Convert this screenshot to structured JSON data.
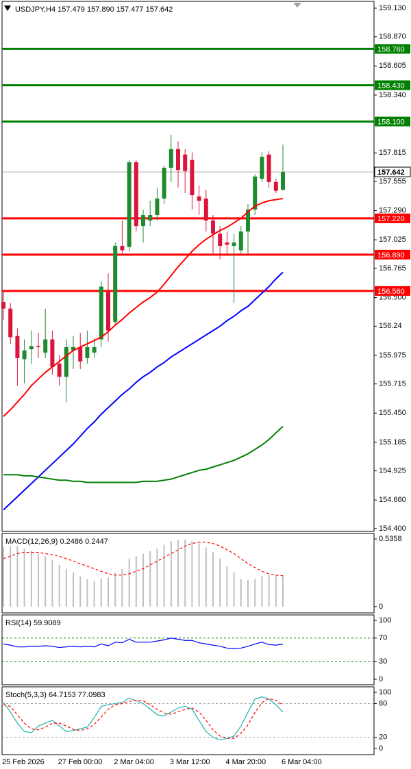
{
  "chart_data": [
    {
      "type": "candlestick",
      "title": "USDJPY,H4 157.479 157.890 157.477 157.642",
      "categories": [
        "25 Feb 2026",
        null,
        null,
        null,
        null,
        null,
        null,
        null,
        "27 Feb 00:00",
        null,
        null,
        null,
        null,
        null,
        null,
        null,
        "2 Mar 04:00",
        null,
        null,
        null,
        null,
        null,
        null,
        null,
        "3 Mar 12:00",
        null,
        null,
        null,
        null,
        null,
        null,
        null,
        "4 Mar 20:00",
        null,
        null,
        null,
        null,
        null,
        null,
        null,
        "6 Mar 04:00"
      ],
      "open": [
        156.46,
        156.4,
        156.15,
        155.94,
        156.03,
        156.06,
        156.0,
        156.12,
        155.9,
        155.78,
        156.02,
        156.05,
        155.95,
        156.0,
        156.12,
        156.55,
        156.28,
        156.97,
        156.96,
        157.73,
        157.15,
        157.2,
        157.25,
        157.4,
        157.68,
        157.85,
        157.8,
        157.75,
        157.42,
        157.4,
        157.2,
        157.08,
        157.0,
        156.97,
        156.93,
        157.1,
        157.3,
        157.58,
        157.8,
        157.55,
        157.479
      ],
      "high": [
        156.55,
        156.45,
        156.22,
        156.12,
        156.2,
        156.18,
        156.4,
        156.2,
        155.98,
        156.12,
        156.15,
        156.18,
        156.2,
        156.13,
        156.65,
        156.72,
        157.0,
        157.2,
        157.75,
        157.75,
        157.3,
        157.38,
        157.5,
        157.7,
        157.98,
        157.92,
        157.85,
        157.82,
        157.52,
        157.48,
        157.25,
        157.15,
        157.1,
        157.08,
        157.15,
        157.35,
        157.62,
        157.82,
        157.83,
        157.58,
        157.89
      ],
      "low": [
        156.3,
        156.08,
        155.7,
        155.72,
        155.9,
        155.95,
        155.95,
        155.8,
        155.7,
        155.55,
        155.85,
        155.85,
        155.9,
        155.95,
        156.05,
        156.1,
        156.25,
        156.9,
        156.92,
        157.1,
        157.0,
        157.15,
        157.2,
        157.35,
        157.55,
        157.5,
        157.45,
        157.3,
        157.25,
        157.1,
        156.9,
        156.85,
        156.9,
        156.45,
        156.9,
        156.9,
        157.25,
        157.55,
        157.5,
        157.45,
        157.477
      ],
      "close": [
        156.4,
        156.14,
        155.95,
        156.02,
        156.06,
        156.05,
        156.12,
        155.87,
        155.78,
        156.05,
        156.05,
        155.92,
        156.05,
        156.05,
        156.6,
        156.2,
        156.97,
        156.93,
        157.73,
        157.15,
        157.25,
        157.25,
        157.4,
        157.68,
        157.85,
        157.66,
        157.65,
        157.43,
        157.38,
        157.2,
        157.08,
        156.97,
        156.98,
        157.0,
        157.1,
        157.3,
        157.6,
        157.78,
        157.55,
        157.47,
        157.642
      ],
      "up_color": "#1f8a2e",
      "down_color": "#dc143c",
      "lines": [
        {
          "color": "#ff0000",
          "values": [
            155.42,
            155.48,
            155.55,
            155.62,
            155.7,
            155.76,
            155.82,
            155.87,
            155.92,
            155.97,
            156.02,
            156.05,
            156.08,
            156.11,
            156.14,
            156.19,
            156.25,
            156.3,
            156.36,
            156.41,
            156.46,
            156.5,
            156.55,
            156.62,
            156.7,
            156.78,
            156.85,
            156.92,
            156.98,
            157.03,
            157.07,
            157.11,
            157.14,
            157.18,
            157.22,
            157.28,
            157.33,
            157.36,
            157.38,
            157.39,
            157.4
          ]
        },
        {
          "color": "#0000ff",
          "values": [
            154.57,
            154.63,
            154.69,
            154.75,
            154.81,
            154.87,
            154.93,
            154.99,
            155.05,
            155.11,
            155.17,
            155.24,
            155.31,
            155.37,
            155.44,
            155.5,
            155.56,
            155.62,
            155.67,
            155.73,
            155.78,
            155.82,
            155.87,
            155.91,
            155.96,
            156.0,
            156.04,
            156.08,
            156.12,
            156.16,
            156.2,
            156.24,
            156.29,
            156.33,
            156.38,
            156.42,
            156.48,
            156.54,
            156.6,
            156.67,
            156.73
          ]
        },
        {
          "color": "#008000",
          "values": [
            154.89,
            154.89,
            154.89,
            154.88,
            154.88,
            154.87,
            154.86,
            154.85,
            154.84,
            154.84,
            154.83,
            154.83,
            154.82,
            154.82,
            154.82,
            154.82,
            154.82,
            154.82,
            154.82,
            154.82,
            154.83,
            154.83,
            154.83,
            154.84,
            154.85,
            154.87,
            154.89,
            154.91,
            154.93,
            154.94,
            154.96,
            154.98,
            155.0,
            155.02,
            155.05,
            155.08,
            155.12,
            155.16,
            155.21,
            155.27,
            155.33
          ]
        }
      ],
      "levels": [
        {
          "value": 158.76,
          "label": "158.760",
          "color": "#008000"
        },
        {
          "value": 158.43,
          "label": "158.430",
          "color": "#008000"
        },
        {
          "value": 158.1,
          "label": "158.100",
          "color": "#008000"
        },
        {
          "value": 157.22,
          "label": "157.220",
          "color": "#ff0000"
        },
        {
          "value": 156.89,
          "label": "156.890",
          "color": "#ff0000"
        },
        {
          "value": 156.56,
          "label": "156.560",
          "color": "#ff0000"
        }
      ],
      "last_price": 157.642,
      "ylim": [
        154.375,
        159.192
      ],
      "yticks": [
        {
          "value": 159.13,
          "label": "159.130"
        },
        {
          "value": 158.87,
          "label": "158.870"
        },
        158.605,
        {
          "value": 158.34,
          "label": "158.340"
        },
        157.815,
        157.555,
        {
          "value": 157.29,
          "label": "157.290"
        },
        157.025,
        156.765,
        {
          "value": 156.5,
          "label": "156.500"
        },
        156.24,
        155.975,
        155.715,
        {
          "value": 155.45,
          "label": "155.450"
        },
        155.185,
        154.925,
        {
          "value": 154.66,
          "label": "154.660"
        },
        {
          "value": 154.4,
          "label": "154.400"
        }
      ]
    },
    {
      "type": "macd",
      "title": "MACD(12,26,9) 0.2486 0.2447",
      "values": [
        0.47,
        0.48,
        0.48,
        0.46,
        0.44,
        0.42,
        0.4,
        0.37,
        0.33,
        0.3,
        0.27,
        0.24,
        0.22,
        0.2,
        0.22,
        0.23,
        0.27,
        0.3,
        0.38,
        0.4,
        0.42,
        0.44,
        0.46,
        0.49,
        0.52,
        0.53,
        0.53,
        0.52,
        0.5,
        0.47,
        0.43,
        0.38,
        0.32,
        0.27,
        0.22,
        0.21,
        0.22,
        0.24,
        0.25,
        0.25,
        0.2486
      ],
      "signal": [
        0.38,
        0.4,
        0.42,
        0.43,
        0.43,
        0.43,
        0.42,
        0.41,
        0.4,
        0.38,
        0.36,
        0.34,
        0.32,
        0.3,
        0.28,
        0.26,
        0.25,
        0.25,
        0.26,
        0.28,
        0.3,
        0.33,
        0.36,
        0.39,
        0.42,
        0.45,
        0.48,
        0.5,
        0.51,
        0.51,
        0.5,
        0.48,
        0.45,
        0.42,
        0.38,
        0.34,
        0.31,
        0.28,
        0.26,
        0.25,
        0.2447
      ],
      "color": "#c0c0c0",
      "signal_color": "#ff0000",
      "ylim": [
        -0.049,
        0.5795
      ],
      "yticks": [
        0.5358,
        0
      ]
    },
    {
      "type": "rsi",
      "title": "RSI(14) 59.9089",
      "values": [
        60,
        58,
        55,
        55,
        56,
        56,
        57,
        56,
        54,
        55,
        56,
        55,
        56,
        55,
        60,
        57,
        63,
        62,
        68,
        63,
        63,
        63,
        65,
        67,
        70,
        68,
        66,
        66,
        62,
        60,
        58,
        56,
        53,
        52,
        53,
        56,
        60,
        63,
        59,
        58,
        59.9089
      ],
      "color": "#0000ff",
      "levels": [
        70,
        30
      ],
      "level_color": "#008000",
      "ylim": [
        -9.3,
        109.3
      ],
      "yticks": [
        100,
        70,
        30,
        0
      ]
    },
    {
      "type": "stoch",
      "title": "Stoch(5,3,3) 64.7153 77.0983",
      "values": [
        82,
        65,
        45,
        30,
        28,
        40,
        45,
        50,
        40,
        30,
        32,
        35,
        38,
        55,
        75,
        78,
        80,
        82,
        90,
        85,
        80,
        70,
        60,
        58,
        65,
        72,
        75,
        70,
        50,
        30,
        20,
        15,
        18,
        22,
        40,
        65,
        88,
        92,
        88,
        78,
        64.7153
      ],
      "signal": [
        78,
        75,
        60,
        45,
        35,
        33,
        38,
        45,
        45,
        40,
        34,
        32,
        35,
        43,
        56,
        70,
        78,
        80,
        84,
        86,
        85,
        78,
        70,
        63,
        61,
        65,
        70,
        72,
        65,
        50,
        33,
        22,
        18,
        18,
        27,
        42,
        64,
        82,
        89,
        86,
        77.0983
      ],
      "color": "#20b2aa",
      "signal_color": "#ff0000",
      "levels": [
        80,
        20
      ],
      "level_color": "#a0a0a0",
      "ylim": [
        -11.1,
        109.9
      ],
      "yticks": [
        100,
        80,
        20,
        0
      ]
    }
  ]
}
